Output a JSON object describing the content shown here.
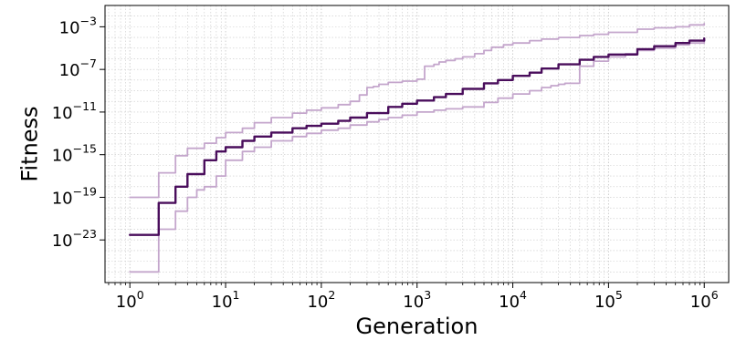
{
  "chart_data": {
    "type": "line",
    "title": "",
    "xlabel": "Generation",
    "ylabel": "Fitness",
    "xscale": "log",
    "yscale": "log",
    "xlim": [
      0.55,
      1800000
    ],
    "ylim": [
      1e-27,
      0.1
    ],
    "x_ticks": [
      {
        "value": 1,
        "base": "10",
        "exp": "0"
      },
      {
        "value": 10,
        "base": "10",
        "exp": "1"
      },
      {
        "value": 100,
        "base": "10",
        "exp": "2"
      },
      {
        "value": 1000,
        "base": "10",
        "exp": "3"
      },
      {
        "value": 10000,
        "base": "10",
        "exp": "4"
      },
      {
        "value": 100000,
        "base": "10",
        "exp": "5"
      },
      {
        "value": 1000000,
        "base": "10",
        "exp": "6"
      }
    ],
    "y_ticks": [
      {
        "value": 1e-23,
        "base": "10",
        "exp": "−23"
      },
      {
        "value": 1e-19,
        "base": "10",
        "exp": "−19"
      },
      {
        "value": 1e-15,
        "base": "10",
        "exp": "−15"
      },
      {
        "value": 1e-11,
        "base": "10",
        "exp": "−11"
      },
      {
        "value": 1e-07,
        "base": "10",
        "exp": "−7"
      },
      {
        "value": 0.001,
        "base": "10",
        "exp": "−3"
      }
    ],
    "grid": true,
    "legend": "none",
    "colors": {
      "central": "#4a0e5c",
      "bound": "#c4a6cc",
      "grid": "#c8c8c8"
    },
    "series": [
      {
        "role": "upper",
        "x": [
          1,
          2,
          3,
          4,
          6,
          8,
          10,
          15,
          20,
          30,
          50,
          70,
          100,
          150,
          200,
          250,
          300,
          350,
          400,
          500,
          700,
          1000,
          1200,
          1500,
          1700,
          2000,
          2500,
          3000,
          4000,
          5000,
          6000,
          8000,
          10000,
          15000,
          20000,
          30000,
          50000,
          70000,
          100000,
          200000,
          300000,
          500000,
          700000,
          1000000
        ],
        "y": [
          1e-19,
          2e-17,
          8e-16,
          4e-15,
          1.2e-14,
          4e-14,
          1.2e-13,
          3e-13,
          1e-12,
          3e-12,
          8e-12,
          1.5e-11,
          2.5e-11,
          5e-11,
          1e-10,
          4e-10,
          2e-09,
          2.5e-09,
          4e-09,
          6e-09,
          8e-09,
          1.2e-08,
          2e-07,
          3e-07,
          5e-07,
          7e-07,
          1e-06,
          1.5e-06,
          3e-06,
          6e-06,
          1.2e-05,
          2e-05,
          3e-05,
          5e-05,
          7e-05,
          0.0001,
          0.00015,
          0.0002,
          0.0003,
          0.0006,
          0.0008,
          0.001,
          0.0015,
          0.002
        ]
      },
      {
        "role": "central",
        "x": [
          1,
          2,
          3,
          4,
          6,
          8,
          10,
          15,
          20,
          30,
          50,
          70,
          100,
          150,
          200,
          300,
          500,
          700,
          1000,
          1500,
          2000,
          3000,
          5000,
          7000,
          10000,
          15000,
          20000,
          30000,
          50000,
          70000,
          100000,
          200000,
          300000,
          500000,
          700000,
          1000000
        ],
        "y": [
          3e-23,
          3e-20,
          1e-18,
          1.5e-17,
          3e-16,
          2e-15,
          5e-15,
          2e-14,
          5e-14,
          1.2e-13,
          3e-13,
          5e-13,
          8e-13,
          1.5e-12,
          3e-12,
          8e-12,
          3e-11,
          6e-11,
          1.2e-10,
          2.5e-10,
          5e-10,
          1.5e-09,
          5e-09,
          1e-08,
          2.5e-08,
          5e-08,
          1.2e-07,
          3e-07,
          8e-07,
          1.5e-06,
          2.5e-06,
          8e-06,
          1.5e-05,
          3e-05,
          5e-05,
          8e-05
        ]
      },
      {
        "role": "lower",
        "x": [
          1,
          2,
          3,
          4,
          5,
          6,
          8,
          10,
          15,
          20,
          30,
          50,
          70,
          100,
          150,
          200,
          300,
          400,
          500,
          700,
          1000,
          1500,
          2000,
          3000,
          5000,
          7000,
          10000,
          15000,
          20000,
          25000,
          30000,
          35000,
          50000,
          70000,
          100000,
          150000,
          200000,
          300000,
          500000,
          700000,
          1000000
        ],
        "y": [
          1e-26,
          1e-22,
          5e-21,
          1e-19,
          5e-19,
          1e-18,
          1e-17,
          3e-16,
          2e-15,
          5e-15,
          2e-14,
          5e-14,
          1e-13,
          2e-13,
          3e-13,
          6e-13,
          1.2e-12,
          2e-12,
          3e-12,
          5e-12,
          1e-11,
          1.5e-11,
          2e-11,
          3e-11,
          8e-11,
          2e-10,
          5e-10,
          1e-09,
          2e-09,
          3e-09,
          4e-09,
          5e-09,
          2e-07,
          6e-07,
          1.5e-06,
          3e-06,
          6e-06,
          1e-05,
          2e-05,
          3e-05,
          5e-05
        ]
      }
    ]
  }
}
